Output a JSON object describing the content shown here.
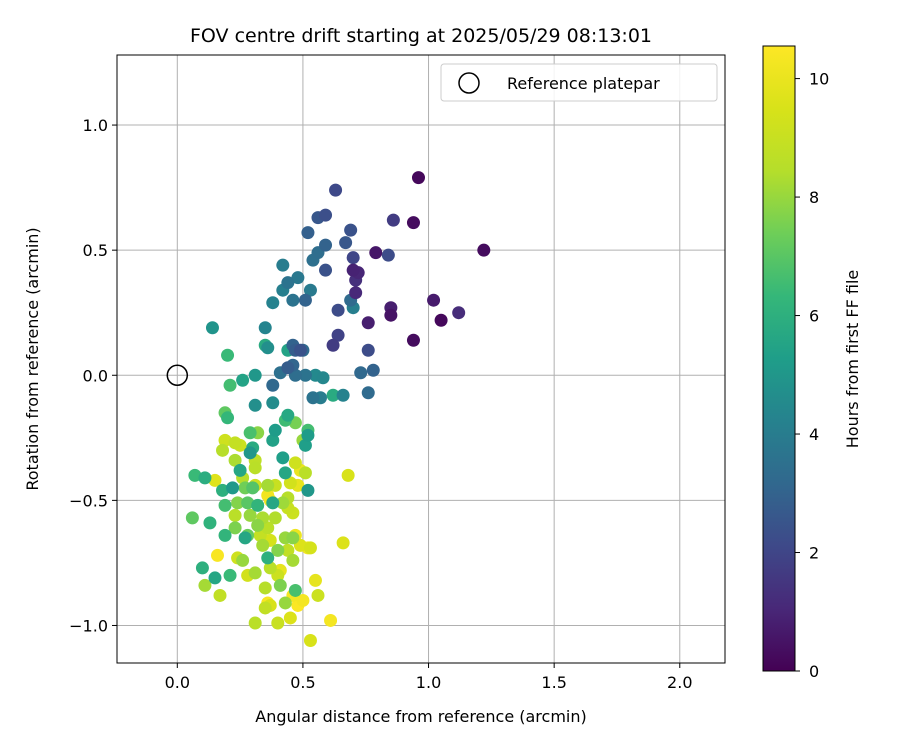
{
  "chart_data": {
    "type": "scatter",
    "title": "FOV centre drift starting at 2025/05/29 08:13:01",
    "xlabel": "Angular distance from reference (arcmin)",
    "ylabel": "Rotation from reference (arcmin)",
    "xlim": [
      -0.24,
      2.18
    ],
    "ylim": [
      -1.15,
      1.28
    ],
    "xticks": [
      0.0,
      0.5,
      1.0,
      1.5,
      2.0
    ],
    "xtick_labels": [
      "0.0",
      "0.5",
      "1.0",
      "1.5",
      "2.0"
    ],
    "yticks": [
      -1.0,
      -0.5,
      0.0,
      0.5,
      1.0
    ],
    "ytick_labels": [
      "−1.0",
      "−0.5",
      "0.0",
      "0.5",
      "1.0"
    ],
    "grid": true,
    "colormap": "viridis",
    "colorbar": {
      "label": "Hours from first FF file",
      "range": [
        0,
        10.55
      ],
      "ticks": [
        0,
        2,
        4,
        6,
        8,
        10
      ],
      "tick_labels": [
        "0",
        "2",
        "4",
        "6",
        "8",
        "10"
      ]
    },
    "legend": {
      "placement": "upper right",
      "entries": [
        {
          "label": "Reference platepar",
          "marker": "open-circle"
        }
      ]
    },
    "reference_point": {
      "x": 0.0,
      "y": 0.0
    },
    "points": [
      {
        "x": 0.96,
        "y": 0.79,
        "t": 0.2
      },
      {
        "x": 1.22,
        "y": 0.5,
        "t": 0.3
      },
      {
        "x": 0.94,
        "y": 0.61,
        "t": 0.3
      },
      {
        "x": 1.05,
        "y": 0.22,
        "t": 0.2
      },
      {
        "x": 0.94,
        "y": 0.14,
        "t": 0.3
      },
      {
        "x": 1.02,
        "y": 0.3,
        "t": 0.7
      },
      {
        "x": 1.12,
        "y": 0.25,
        "t": 1.2
      },
      {
        "x": 0.85,
        "y": 0.27,
        "t": 0.8
      },
      {
        "x": 0.85,
        "y": 0.24,
        "t": 0.5
      },
      {
        "x": 0.79,
        "y": 0.49,
        "t": 0.6
      },
      {
        "x": 0.76,
        "y": 0.21,
        "t": 0.8
      },
      {
        "x": 0.7,
        "y": 0.42,
        "t": 0.9
      },
      {
        "x": 0.72,
        "y": 0.41,
        "t": 1.0
      },
      {
        "x": 0.71,
        "y": 0.38,
        "t": 1.3
      },
      {
        "x": 0.71,
        "y": 0.33,
        "t": 1.1
      },
      {
        "x": 0.86,
        "y": 0.62,
        "t": 1.7
      },
      {
        "x": 0.84,
        "y": 0.48,
        "t": 2.2
      },
      {
        "x": 0.63,
        "y": 0.74,
        "t": 2.1
      },
      {
        "x": 0.59,
        "y": 0.64,
        "t": 2.3
      },
      {
        "x": 0.56,
        "y": 0.63,
        "t": 2.6
      },
      {
        "x": 0.69,
        "y": 0.58,
        "t": 2.4
      },
      {
        "x": 0.52,
        "y": 0.57,
        "t": 2.9
      },
      {
        "x": 0.67,
        "y": 0.53,
        "t": 2.6
      },
      {
        "x": 0.59,
        "y": 0.52,
        "t": 3.0
      },
      {
        "x": 0.7,
        "y": 0.47,
        "t": 2.0
      },
      {
        "x": 0.59,
        "y": 0.42,
        "t": 2.4
      },
      {
        "x": 0.56,
        "y": 0.49,
        "t": 3.4
      },
      {
        "x": 0.54,
        "y": 0.46,
        "t": 3.5
      },
      {
        "x": 0.69,
        "y": 0.3,
        "t": 3.3
      },
      {
        "x": 0.7,
        "y": 0.27,
        "t": 4.1
      },
      {
        "x": 0.64,
        "y": 0.26,
        "t": 2.2
      },
      {
        "x": 0.76,
        "y": 0.1,
        "t": 2.2
      },
      {
        "x": 0.64,
        "y": 0.16,
        "t": 1.9
      },
      {
        "x": 0.62,
        "y": 0.12,
        "t": 1.7
      },
      {
        "x": 0.42,
        "y": 0.44,
        "t": 4.0
      },
      {
        "x": 0.48,
        "y": 0.39,
        "t": 3.8
      },
      {
        "x": 0.44,
        "y": 0.37,
        "t": 3.6
      },
      {
        "x": 0.42,
        "y": 0.34,
        "t": 4.1
      },
      {
        "x": 0.53,
        "y": 0.34,
        "t": 3.9
      },
      {
        "x": 0.51,
        "y": 0.3,
        "t": 3.0
      },
      {
        "x": 0.46,
        "y": 0.3,
        "t": 3.6
      },
      {
        "x": 0.38,
        "y": 0.29,
        "t": 4.2
      },
      {
        "x": 0.35,
        "y": 0.19,
        "t": 4.3
      },
      {
        "x": 0.14,
        "y": 0.19,
        "t": 4.9
      },
      {
        "x": 0.46,
        "y": 0.12,
        "t": 3.0
      },
      {
        "x": 0.47,
        "y": 0.1,
        "t": 2.8
      },
      {
        "x": 0.49,
        "y": 0.1,
        "t": 2.4
      },
      {
        "x": 0.44,
        "y": 0.1,
        "t": 5.5
      },
      {
        "x": 0.5,
        "y": 0.1,
        "t": 3.3
      },
      {
        "x": 0.35,
        "y": 0.12,
        "t": 5.8
      },
      {
        "x": 0.36,
        "y": 0.11,
        "t": 4.7
      },
      {
        "x": 0.2,
        "y": 0.08,
        "t": 6.4
      },
      {
        "x": 0.41,
        "y": 0.01,
        "t": 3.5
      },
      {
        "x": 0.44,
        "y": 0.03,
        "t": 2.8
      },
      {
        "x": 0.46,
        "y": 0.04,
        "t": 3.1
      },
      {
        "x": 0.47,
        "y": 0.0,
        "t": 3.4
      },
      {
        "x": 0.51,
        "y": 0.0,
        "t": 3.6
      },
      {
        "x": 0.55,
        "y": 0.0,
        "t": 4.5
      },
      {
        "x": 0.58,
        "y": -0.01,
        "t": 4.4
      },
      {
        "x": 0.73,
        "y": 0.01,
        "t": 3.2
      },
      {
        "x": 0.78,
        "y": 0.02,
        "t": 3.0
      },
      {
        "x": 0.76,
        "y": -0.07,
        "t": 3.3
      },
      {
        "x": 0.66,
        "y": -0.08,
        "t": 4.2
      },
      {
        "x": 0.62,
        "y": -0.08,
        "t": 5.8
      },
      {
        "x": 0.57,
        "y": -0.09,
        "t": 4.0
      },
      {
        "x": 0.54,
        "y": -0.09,
        "t": 3.6
      },
      {
        "x": 0.31,
        "y": 0.0,
        "t": 5.0
      },
      {
        "x": 0.26,
        "y": -0.02,
        "t": 5.5
      },
      {
        "x": 0.21,
        "y": -0.04,
        "t": 6.6
      },
      {
        "x": 0.38,
        "y": -0.04,
        "t": 3.2
      },
      {
        "x": 0.31,
        "y": -0.12,
        "t": 4.7
      },
      {
        "x": 0.38,
        "y": -0.11,
        "t": 4.6
      },
      {
        "x": 0.19,
        "y": -0.15,
        "t": 7.1
      },
      {
        "x": 0.2,
        "y": -0.17,
        "t": 6.3
      },
      {
        "x": 0.44,
        "y": -0.16,
        "t": 5.7
      },
      {
        "x": 0.43,
        "y": -0.18,
        "t": 6.5
      },
      {
        "x": 0.47,
        "y": -0.19,
        "t": 7.5
      },
      {
        "x": 0.52,
        "y": -0.22,
        "t": 6.6
      },
      {
        "x": 0.52,
        "y": -0.24,
        "t": 5.2
      },
      {
        "x": 0.39,
        "y": -0.22,
        "t": 5.2
      },
      {
        "x": 0.38,
        "y": -0.26,
        "t": 5.4
      },
      {
        "x": 0.29,
        "y": -0.23,
        "t": 6.7
      },
      {
        "x": 0.32,
        "y": -0.23,
        "t": 7.8
      },
      {
        "x": 0.5,
        "y": -0.26,
        "t": 8.0
      },
      {
        "x": 0.51,
        "y": -0.28,
        "t": 5.3
      },
      {
        "x": 0.23,
        "y": -0.27,
        "t": 8.9
      },
      {
        "x": 0.25,
        "y": -0.28,
        "t": 9.1
      },
      {
        "x": 0.19,
        "y": -0.26,
        "t": 9.2
      },
      {
        "x": 0.18,
        "y": -0.3,
        "t": 8.5
      },
      {
        "x": 0.29,
        "y": -0.31,
        "t": 5.0
      },
      {
        "x": 0.3,
        "y": -0.29,
        "t": 5.8
      },
      {
        "x": 0.23,
        "y": -0.34,
        "t": 8.3
      },
      {
        "x": 0.31,
        "y": -0.34,
        "t": 8.7
      },
      {
        "x": 0.31,
        "y": -0.37,
        "t": 8.6
      },
      {
        "x": 0.42,
        "y": -0.33,
        "t": 5.3
      },
      {
        "x": 0.47,
        "y": -0.35,
        "t": 9.2
      },
      {
        "x": 0.49,
        "y": -0.38,
        "t": 10.0
      },
      {
        "x": 0.51,
        "y": -0.39,
        "t": 8.6
      },
      {
        "x": 0.43,
        "y": -0.39,
        "t": 5.6
      },
      {
        "x": 0.25,
        "y": -0.38,
        "t": 5.6
      },
      {
        "x": 0.26,
        "y": -0.41,
        "t": 8.5
      },
      {
        "x": 0.07,
        "y": -0.4,
        "t": 6.4
      },
      {
        "x": 0.11,
        "y": -0.41,
        "t": 5.9
      },
      {
        "x": 0.15,
        "y": -0.42,
        "t": 9.7
      },
      {
        "x": 0.18,
        "y": -0.46,
        "t": 6.0
      },
      {
        "x": 0.22,
        "y": -0.45,
        "t": 5.1
      },
      {
        "x": 0.27,
        "y": -0.45,
        "t": 7.4
      },
      {
        "x": 0.3,
        "y": -0.45,
        "t": 6.9
      },
      {
        "x": 0.31,
        "y": -0.44,
        "t": 9.1
      },
      {
        "x": 0.36,
        "y": -0.44,
        "t": 8.2
      },
      {
        "x": 0.39,
        "y": -0.44,
        "t": 9.0
      },
      {
        "x": 0.45,
        "y": -0.43,
        "t": 9.3
      },
      {
        "x": 0.36,
        "y": -0.48,
        "t": 10.2
      },
      {
        "x": 0.37,
        "y": -0.5,
        "t": 10.3
      },
      {
        "x": 0.44,
        "y": -0.49,
        "t": 8.5
      },
      {
        "x": 0.48,
        "y": -0.44,
        "t": 9.9
      },
      {
        "x": 0.52,
        "y": -0.46,
        "t": 5.0
      },
      {
        "x": 0.68,
        "y": -0.4,
        "t": 9.5
      },
      {
        "x": 0.19,
        "y": -0.52,
        "t": 6.6
      },
      {
        "x": 0.24,
        "y": -0.51,
        "t": 7.7
      },
      {
        "x": 0.28,
        "y": -0.51,
        "t": 7.0
      },
      {
        "x": 0.32,
        "y": -0.52,
        "t": 6.2
      },
      {
        "x": 0.38,
        "y": -0.51,
        "t": 5.6
      },
      {
        "x": 0.42,
        "y": -0.51,
        "t": 8.1
      },
      {
        "x": 0.44,
        "y": -0.53,
        "t": 9.0
      },
      {
        "x": 0.46,
        "y": -0.55,
        "t": 9.1
      },
      {
        "x": 0.06,
        "y": -0.57,
        "t": 7.1
      },
      {
        "x": 0.13,
        "y": -0.59,
        "t": 6.1
      },
      {
        "x": 0.23,
        "y": -0.56,
        "t": 8.6
      },
      {
        "x": 0.29,
        "y": -0.56,
        "t": 8.0
      },
      {
        "x": 0.32,
        "y": -0.6,
        "t": 7.8
      },
      {
        "x": 0.34,
        "y": -0.57,
        "t": 8.3
      },
      {
        "x": 0.39,
        "y": -0.57,
        "t": 8.4
      },
      {
        "x": 0.36,
        "y": -0.61,
        "t": 8.6
      },
      {
        "x": 0.23,
        "y": -0.61,
        "t": 7.6
      },
      {
        "x": 0.19,
        "y": -0.64,
        "t": 6.2
      },
      {
        "x": 0.27,
        "y": -0.65,
        "t": 5.6
      },
      {
        "x": 0.28,
        "y": -0.64,
        "t": 7.3
      },
      {
        "x": 0.33,
        "y": -0.64,
        "t": 8.9
      },
      {
        "x": 0.35,
        "y": -0.66,
        "t": 9.8
      },
      {
        "x": 0.34,
        "y": -0.68,
        "t": 8.2
      },
      {
        "x": 0.37,
        "y": -0.66,
        "t": 9.4
      },
      {
        "x": 0.43,
        "y": -0.65,
        "t": 8.0
      },
      {
        "x": 0.46,
        "y": -0.65,
        "t": 7.8
      },
      {
        "x": 0.47,
        "y": -0.64,
        "t": 10.1
      },
      {
        "x": 0.49,
        "y": -0.68,
        "t": 9.6
      },
      {
        "x": 0.52,
        "y": -0.69,
        "t": 10.2
      },
      {
        "x": 0.53,
        "y": -0.69,
        "t": 9.4
      },
      {
        "x": 0.66,
        "y": -0.67,
        "t": 9.6
      },
      {
        "x": 0.16,
        "y": -0.72,
        "t": 10.4
      },
      {
        "x": 0.24,
        "y": -0.73,
        "t": 9.2
      },
      {
        "x": 0.26,
        "y": -0.74,
        "t": 8.0
      },
      {
        "x": 0.36,
        "y": -0.73,
        "t": 6.0
      },
      {
        "x": 0.4,
        "y": -0.7,
        "t": 7.7
      },
      {
        "x": 0.44,
        "y": -0.7,
        "t": 8.8
      },
      {
        "x": 0.46,
        "y": -0.74,
        "t": 8.2
      },
      {
        "x": 0.1,
        "y": -0.77,
        "t": 6.0
      },
      {
        "x": 0.15,
        "y": -0.81,
        "t": 5.6
      },
      {
        "x": 0.21,
        "y": -0.8,
        "t": 6.4
      },
      {
        "x": 0.28,
        "y": -0.8,
        "t": 9.3
      },
      {
        "x": 0.31,
        "y": -0.79,
        "t": 8.2
      },
      {
        "x": 0.37,
        "y": -0.77,
        "t": 8.6
      },
      {
        "x": 0.4,
        "y": -0.8,
        "t": 9.1
      },
      {
        "x": 0.41,
        "y": -0.78,
        "t": 9.9
      },
      {
        "x": 0.11,
        "y": -0.84,
        "t": 8.2
      },
      {
        "x": 0.17,
        "y": -0.88,
        "t": 8.8
      },
      {
        "x": 0.35,
        "y": -0.85,
        "t": 8.5
      },
      {
        "x": 0.41,
        "y": -0.84,
        "t": 7.6
      },
      {
        "x": 0.47,
        "y": -0.86,
        "t": 6.7
      },
      {
        "x": 0.46,
        "y": -0.88,
        "t": 10.3
      },
      {
        "x": 0.55,
        "y": -0.82,
        "t": 9.9
      },
      {
        "x": 0.56,
        "y": -0.88,
        "t": 9.1
      },
      {
        "x": 0.36,
        "y": -0.91,
        "t": 10.4
      },
      {
        "x": 0.37,
        "y": -0.92,
        "t": 9.5
      },
      {
        "x": 0.35,
        "y": -0.93,
        "t": 8.8
      },
      {
        "x": 0.43,
        "y": -0.91,
        "t": 8.0
      },
      {
        "x": 0.48,
        "y": -0.92,
        "t": 10.5
      },
      {
        "x": 0.5,
        "y": -0.9,
        "t": 10.3
      },
      {
        "x": 0.31,
        "y": -0.99,
        "t": 8.6
      },
      {
        "x": 0.4,
        "y": -0.99,
        "t": 9.0
      },
      {
        "x": 0.45,
        "y": -0.97,
        "t": 9.6
      },
      {
        "x": 0.61,
        "y": -0.98,
        "t": 10.3
      },
      {
        "x": 0.53,
        "y": -1.06,
        "t": 9.5
      }
    ]
  }
}
